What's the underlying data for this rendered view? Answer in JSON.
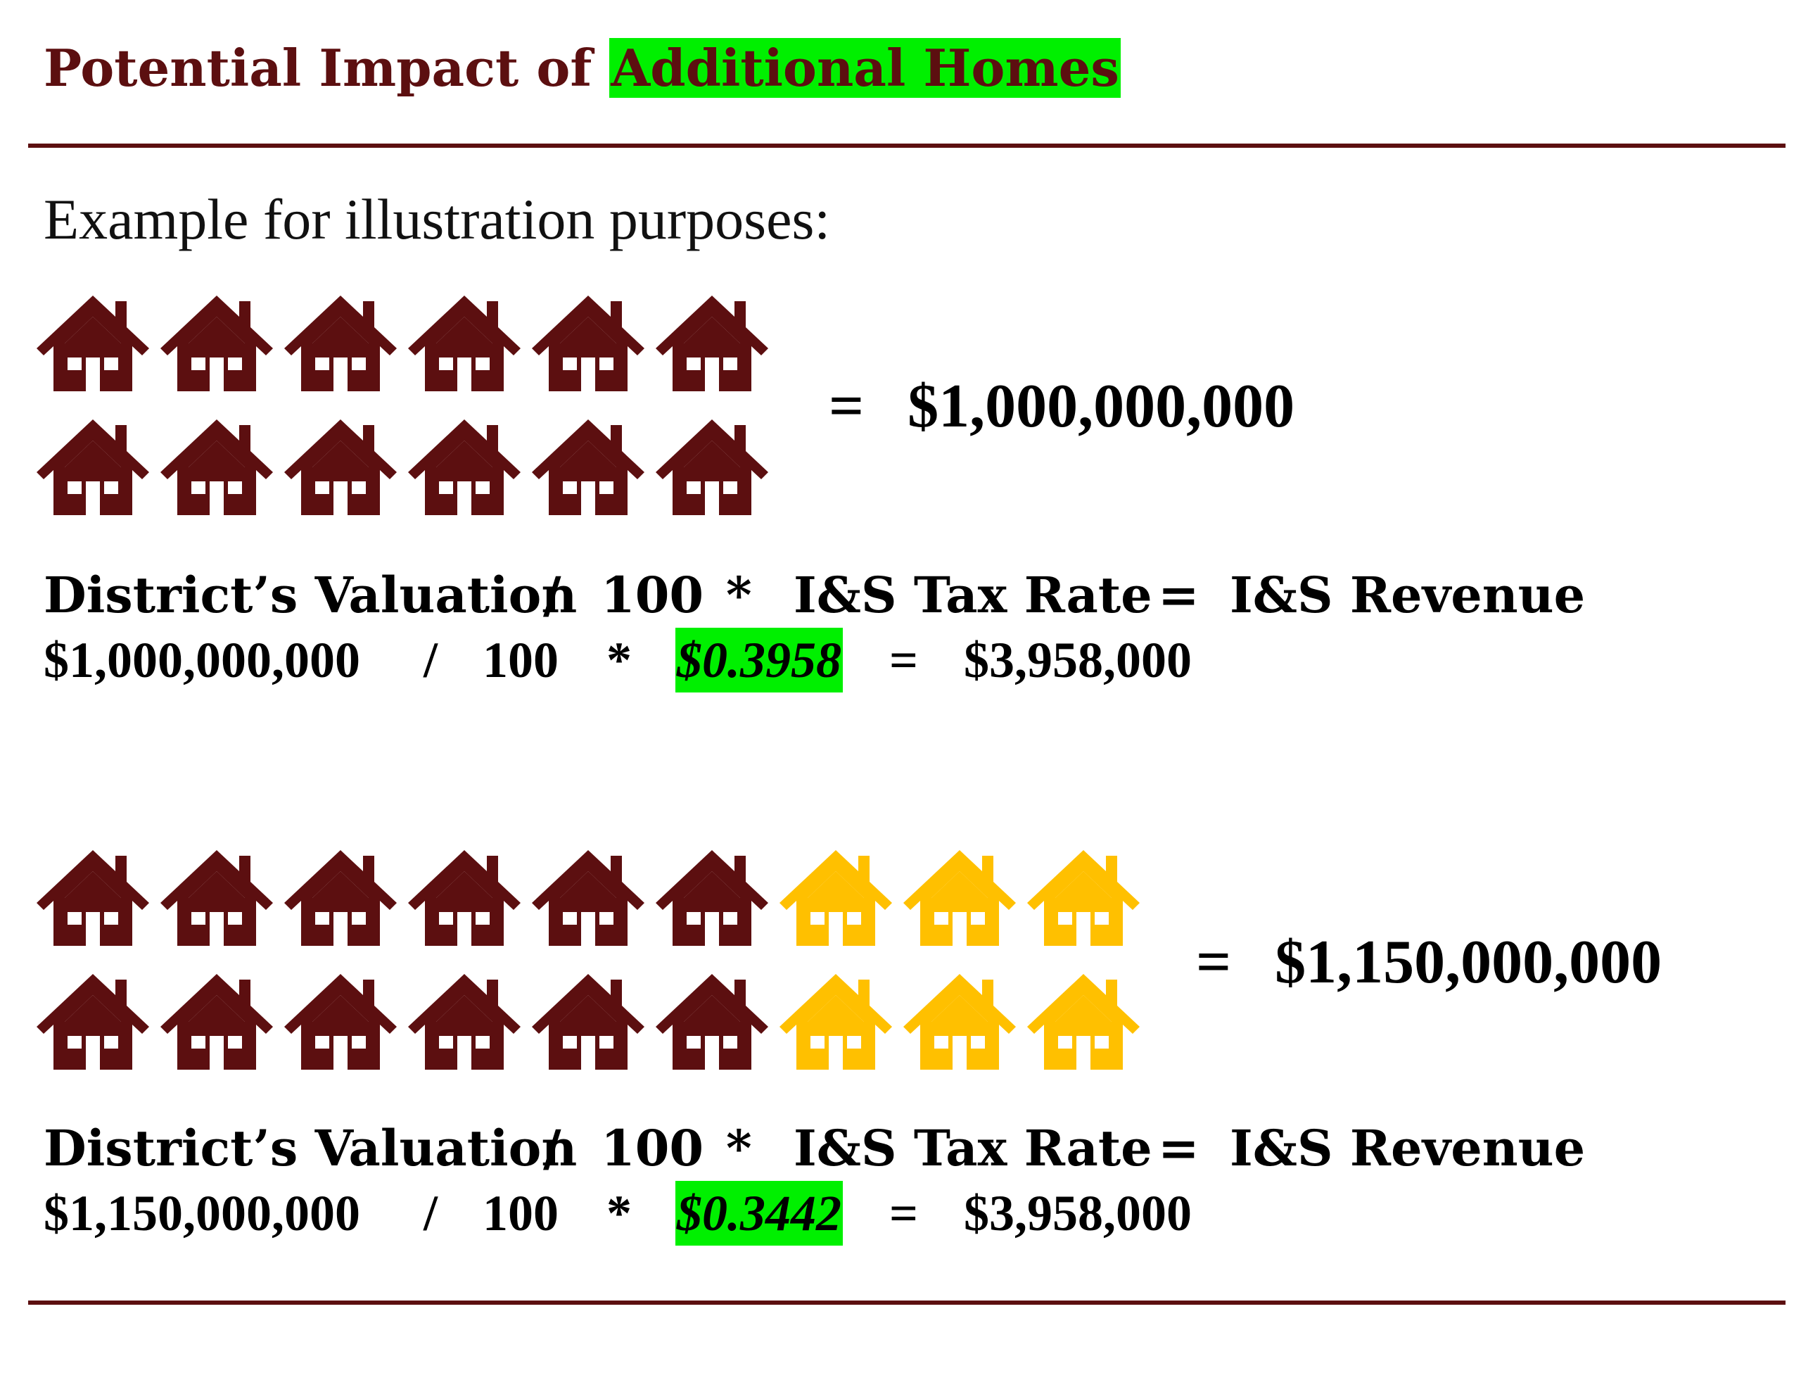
{
  "title": {
    "prefix": "Potential Impact of ",
    "highlight": "Additional Homes"
  },
  "subtitle": "Example for illustration purposes:",
  "colors": {
    "existing_home": "#5c0f10",
    "additional_home": "#ffc000",
    "highlight": "#00f000",
    "rule": "#5c0f10"
  },
  "icon": "house-icon",
  "example1": {
    "existing_homes": 12,
    "additional_homes": 0,
    "equals": "=",
    "total": "$1,000,000,000",
    "header": {
      "valuation": "District’s Valuation",
      "div": "/",
      "hundred": "100",
      "mul": "*",
      "rate": "I&S Tax Rate",
      "eq": "=",
      "revenue": "I&S Revenue"
    },
    "values": {
      "valuation": "$1,000,000,000",
      "div": "/",
      "hundred": "100",
      "mul": "*",
      "rate": "$0.3958",
      "eq": "=",
      "revenue": "$3,958,000"
    }
  },
  "example2": {
    "existing_homes": 12,
    "additional_homes": 6,
    "equals": "=",
    "total": "$1,150,000,000",
    "header": {
      "valuation": "District’s Valuation",
      "div": "/",
      "hundred": "100",
      "mul": "*",
      "rate": "I&S Tax Rate",
      "eq": "=",
      "revenue": "I&S Revenue"
    },
    "values": {
      "valuation": "$1,150,000,000",
      "div": "/",
      "hundred": "100",
      "mul": "*",
      "rate": "$0.3442",
      "eq": "=",
      "revenue": "$3,958,000"
    }
  }
}
